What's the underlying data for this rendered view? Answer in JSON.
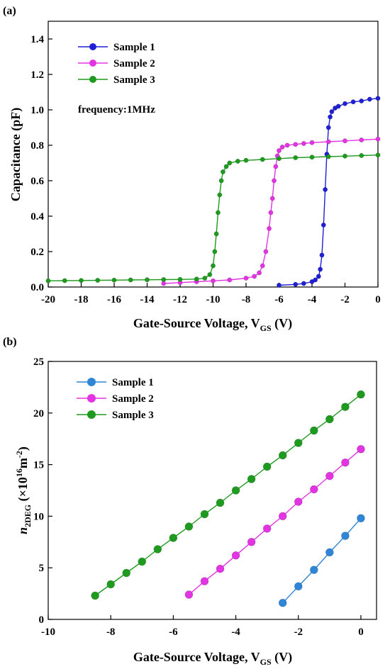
{
  "chart_data": [
    {
      "panel_label": "(a)",
      "type": "scatter",
      "xlabel": "Gate-Source Voltage, V",
      "xlabel_sub": "GS",
      "xlabel_unit": " (V)",
      "ylabel": "Capacitance (pF)",
      "xlim": [
        -20,
        0
      ],
      "ylim": [
        0,
        1.5
      ],
      "xticks": [
        -20,
        -18,
        -16,
        -14,
        -12,
        -10,
        -8,
        -6,
        -4,
        -2,
        0
      ],
      "yticks": [
        0.0,
        0.2,
        0.4,
        0.6,
        0.8,
        1.0,
        1.2,
        1.4
      ],
      "xtick_labels": [
        "-20",
        "-18",
        "-16",
        "-14",
        "-12",
        "-10",
        "-8",
        "-6",
        "-4",
        "-2",
        "0"
      ],
      "ytick_labels": [
        "0.0",
        "0.2",
        "0.4",
        "0.6",
        "0.8",
        "1.0",
        "1.2",
        "1.4"
      ],
      "annotation": "frequency:1MHz",
      "legend_position": "top-left",
      "grid": false,
      "series": [
        {
          "name": "Sample 1",
          "color": "#1f1fd6",
          "x": [
            -6.0,
            -5.0,
            -4.5,
            -4.0,
            -3.8,
            -3.6,
            -3.5,
            -3.4,
            -3.3,
            -3.2,
            -3.1,
            -3.0,
            -2.9,
            -2.8,
            -2.6,
            -2.4,
            -2.0,
            -1.5,
            -1.0,
            -0.5,
            0.0
          ],
          "y": [
            0.01,
            0.015,
            0.02,
            0.03,
            0.04,
            0.06,
            0.1,
            0.18,
            0.35,
            0.55,
            0.75,
            0.9,
            0.96,
            0.99,
            1.01,
            1.02,
            1.035,
            1.045,
            1.05,
            1.06,
            1.065
          ]
        },
        {
          "name": "Sample 2",
          "color": "#e234e2",
          "x": [
            -13.0,
            -12.0,
            -11.0,
            -10.0,
            -9.0,
            -8.0,
            -7.5,
            -7.2,
            -7.0,
            -6.8,
            -6.6,
            -6.5,
            -6.4,
            -6.3,
            -6.2,
            -6.1,
            -6.0,
            -5.8,
            -5.5,
            -5.0,
            -4.5,
            -4.0,
            -3.0,
            -2.0,
            -1.0,
            0.0
          ],
          "y": [
            0.02,
            0.025,
            0.03,
            0.035,
            0.04,
            0.05,
            0.06,
            0.08,
            0.12,
            0.2,
            0.33,
            0.42,
            0.5,
            0.6,
            0.68,
            0.74,
            0.77,
            0.79,
            0.8,
            0.805,
            0.81,
            0.815,
            0.82,
            0.825,
            0.83,
            0.835
          ]
        },
        {
          "name": "Sample 3",
          "color": "#1e9a1e",
          "x": [
            -20.0,
            -19.0,
            -18.0,
            -17.0,
            -16.0,
            -15.0,
            -14.0,
            -13.0,
            -12.0,
            -11.0,
            -10.5,
            -10.2,
            -10.0,
            -9.9,
            -9.8,
            -9.7,
            -9.6,
            -9.5,
            -9.4,
            -9.2,
            -9.0,
            -8.5,
            -8.0,
            -7.0,
            -6.0,
            -5.0,
            -4.0,
            -3.0,
            -2.0,
            -1.0,
            0.0
          ],
          "y": [
            0.035,
            0.036,
            0.037,
            0.038,
            0.039,
            0.04,
            0.041,
            0.042,
            0.043,
            0.045,
            0.05,
            0.07,
            0.12,
            0.2,
            0.3,
            0.42,
            0.52,
            0.6,
            0.65,
            0.68,
            0.7,
            0.71,
            0.715,
            0.72,
            0.725,
            0.73,
            0.733,
            0.736,
            0.739,
            0.742,
            0.745
          ]
        }
      ]
    },
    {
      "panel_label": "(b)",
      "type": "line",
      "xlabel": "Gate-Source Voltage, V",
      "xlabel_sub": "GS",
      "xlabel_unit": " (V)",
      "ylabel_main": "n",
      "ylabel_sub": "2DEG",
      "ylabel_unit": " (×10",
      "ylabel_sup": "16",
      "ylabel_unit2": "m",
      "ylabel_sup2": "-2",
      "ylabel_close": ")",
      "xlim": [
        -10,
        0.5
      ],
      "ylim": [
        0,
        25
      ],
      "xticks": [
        -10,
        -8,
        -6,
        -4,
        -2,
        0
      ],
      "yticks": [
        0,
        5,
        10,
        15,
        20,
        25
      ],
      "xtick_labels": [
        "-10",
        "-8",
        "-6",
        "-4",
        "-2",
        "0"
      ],
      "ytick_labels": [
        "0",
        "5",
        "10",
        "15",
        "20",
        "25"
      ],
      "legend_position": "top-left",
      "grid": false,
      "series": [
        {
          "name": "Sample 1",
          "color": "#2f86d6",
          "x": [
            -2.5,
            -2.0,
            -1.5,
            -1.0,
            -0.5,
            0.0
          ],
          "y": [
            1.6,
            3.2,
            4.8,
            6.5,
            8.1,
            9.8
          ]
        },
        {
          "name": "Sample 2",
          "color": "#e234e2",
          "x": [
            -5.5,
            -5.0,
            -4.5,
            -4.0,
            -3.5,
            -3.0,
            -2.5,
            -2.0,
            -1.5,
            -1.0,
            -0.5,
            0.0
          ],
          "y": [
            2.4,
            3.7,
            4.9,
            6.2,
            7.5,
            8.8,
            10.0,
            11.4,
            12.6,
            13.9,
            15.2,
            16.5
          ]
        },
        {
          "name": "Sample 3",
          "color": "#1e9a1e",
          "x": [
            -8.5,
            -8.0,
            -7.5,
            -7.0,
            -6.5,
            -6.0,
            -5.5,
            -5.0,
            -4.5,
            -4.0,
            -3.5,
            -3.0,
            -2.5,
            -2.0,
            -1.5,
            -1.0,
            -0.5,
            0.0
          ],
          "y": [
            2.3,
            3.4,
            4.5,
            5.6,
            6.8,
            7.9,
            9.0,
            10.2,
            11.3,
            12.5,
            13.6,
            14.8,
            15.9,
            17.1,
            18.3,
            19.4,
            20.6,
            21.8
          ]
        }
      ]
    }
  ]
}
